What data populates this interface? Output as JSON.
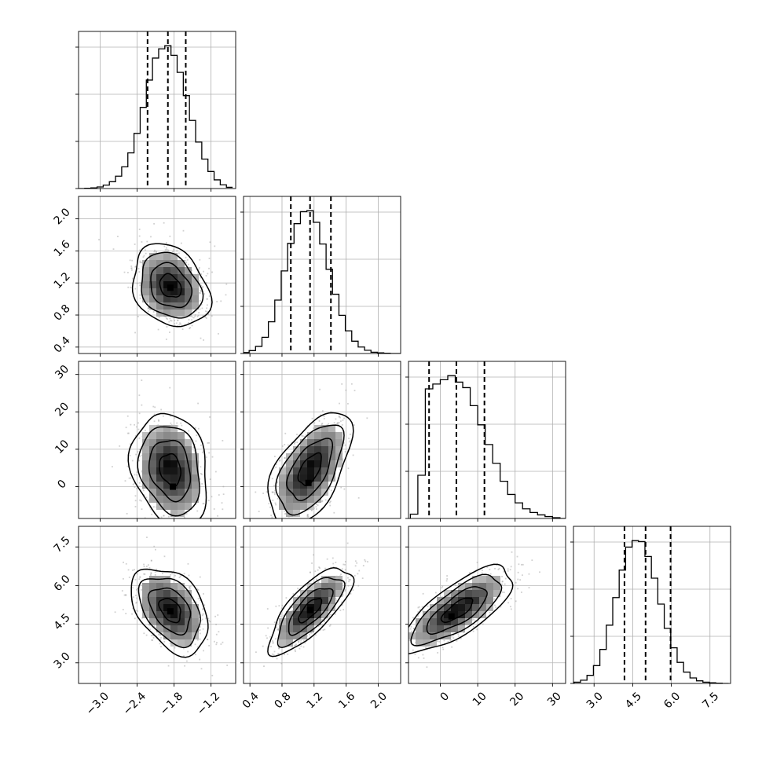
{
  "chart_data": {
    "type": "corner",
    "params": [
      {
        "ticks": [
          "−3.0",
          "−2.4",
          "−1.8",
          "−1.2"
        ],
        "tick_values": [
          -3.0,
          -2.4,
          -1.8,
          -1.2
        ],
        "range": [
          -3.35,
          -0.8
        ]
      },
      {
        "ticks": [
          "0.4",
          "0.8",
          "1.2",
          "1.6",
          "2.0"
        ],
        "tick_values": [
          0.4,
          0.8,
          1.2,
          1.6,
          2.0
        ],
        "range": [
          0.32,
          2.28
        ]
      },
      {
        "ticks": [
          "0",
          "10",
          "20",
          "30"
        ],
        "tick_values": [
          0,
          10,
          20,
          30
        ],
        "range": [
          -8.5,
          33.5
        ]
      },
      {
        "ticks": [
          "3.0",
          "4.5",
          "6.0",
          "7.5"
        ],
        "tick_values": [
          3.0,
          4.5,
          6.0,
          7.5
        ],
        "range": [
          2.2,
          8.3
        ]
      }
    ],
    "quantiles": [
      [
        -2.23,
        -1.9,
        -1.61
      ],
      [
        0.91,
        1.15,
        1.41
      ],
      [
        -3.0,
        4.3,
        11.8
      ],
      [
        4.18,
        5.0,
        5.97
      ]
    ],
    "marginals": [
      {
        "centers": [
          -3.3,
          -3.2,
          -3.1,
          -3.0,
          -2.9,
          -2.8,
          -2.7,
          -2.6,
          -2.5,
          -2.4,
          -2.3,
          -2.2,
          -2.1,
          -2.0,
          -1.9,
          -1.8,
          -1.7,
          -1.6,
          -1.5,
          -1.4,
          -1.3,
          -1.2,
          -1.1,
          -1.0,
          -0.9
        ],
        "counts": [
          0,
          1,
          2,
          5,
          11,
          22,
          40,
          70,
          115,
          178,
          262,
          350,
          421,
          451,
          461,
          430,
          375,
          300,
          220,
          150,
          95,
          55,
          28,
          12,
          4
        ]
      },
      {
        "centers": [
          0.35,
          0.43,
          0.51,
          0.59,
          0.67,
          0.75,
          0.83,
          0.91,
          0.99,
          1.07,
          1.15,
          1.23,
          1.31,
          1.39,
          1.47,
          1.55,
          1.63,
          1.71,
          1.79,
          1.87,
          1.95,
          2.03,
          2.11,
          2.19,
          2.27
        ],
        "counts": [
          3,
          9,
          22,
          50,
          98,
          165,
          255,
          340,
          401,
          438,
          441,
          405,
          338,
          260,
          183,
          118,
          70,
          38,
          20,
          10,
          4,
          2,
          1,
          0,
          0
        ]
      },
      {
        "centers": [
          -7.0,
          -5.0,
          -3.0,
          -1.0,
          1.0,
          3.0,
          5.0,
          7.0,
          9.0,
          11.0,
          13.0,
          15.0,
          17.0,
          19.0,
          21.0,
          23.0,
          25.0,
          27.0,
          29.0,
          31.0,
          33.0
        ],
        "counts": [
          18,
          180,
          540,
          560,
          578,
          595,
          568,
          545,
          470,
          390,
          308,
          230,
          155,
          100,
          65,
          40,
          25,
          15,
          8,
          3,
          0
        ]
      },
      {
        "centers": [
          2.35,
          2.6,
          2.85,
          3.1,
          3.35,
          3.6,
          3.85,
          4.1,
          4.35,
          4.6,
          4.85,
          5.1,
          5.35,
          5.6,
          5.85,
          6.1,
          6.35,
          6.6,
          6.85,
          7.1,
          7.35,
          7.6,
          7.85,
          8.1
        ],
        "counts": [
          4,
          10,
          25,
          55,
          105,
          180,
          265,
          350,
          421,
          441,
          438,
          392,
          325,
          245,
          170,
          110,
          65,
          35,
          17,
          8,
          4,
          2,
          1,
          0
        ]
      }
    ],
    "pairs": [
      {
        "row": 1,
        "col": 0,
        "center": [
          -1.86,
          1.16
        ],
        "sd": [
          0.29,
          0.24
        ],
        "rho": -0.25,
        "mode": [
          -1.86,
          1.14
        ]
      },
      {
        "row": 2,
        "col": 0,
        "center": [
          -1.86,
          4.6
        ],
        "sd": [
          0.29,
          7.0
        ],
        "rho": -0.2,
        "mode": [
          -1.82,
          0.0
        ]
      },
      {
        "row": 2,
        "col": 1,
        "center": [
          1.15,
          4.6
        ],
        "sd": [
          0.24,
          7.0
        ],
        "rho": 0.55,
        "mode": [
          1.13,
          1.0
        ]
      },
      {
        "row": 3,
        "col": 0,
        "center": [
          -1.86,
          5.05
        ],
        "sd": [
          0.29,
          0.78
        ],
        "rho": -0.4,
        "mode": [
          -1.86,
          5.0
        ]
      },
      {
        "row": 3,
        "col": 1,
        "center": [
          1.15,
          5.05
        ],
        "sd": [
          0.24,
          0.78
        ],
        "rho": 0.75,
        "mode": [
          1.15,
          5.05
        ]
      },
      {
        "row": 3,
        "col": 2,
        "center": [
          4.6,
          5.05
        ],
        "sd": [
          7.0,
          0.78
        ],
        "rho": 0.75,
        "mode": [
          3.0,
          4.8
        ]
      }
    ],
    "grid": true,
    "xlabel": "",
    "ylabel": "",
    "title": ""
  }
}
